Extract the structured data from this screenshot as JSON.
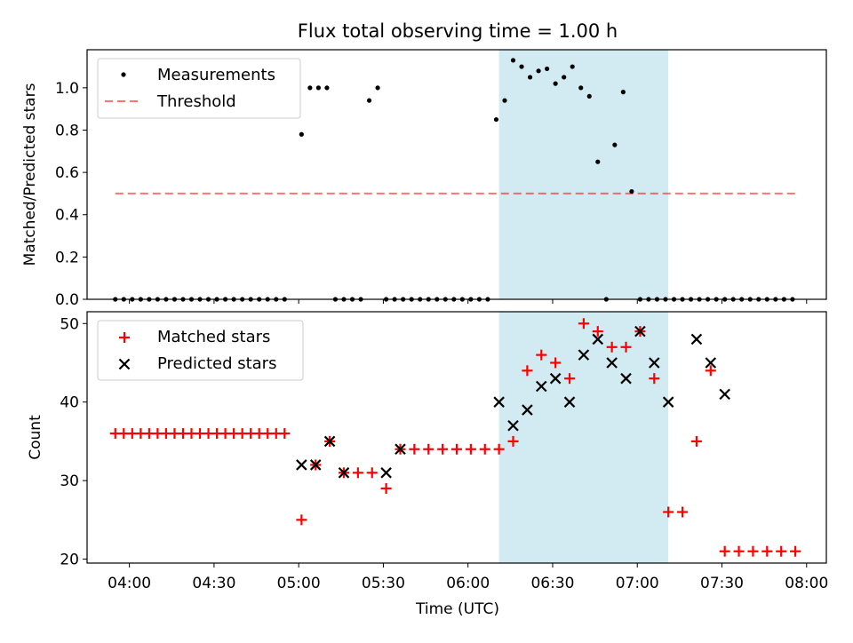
{
  "title": "Flux total observing time = 1.00 h",
  "xlabel": "Time (UTC)",
  "xticks": [
    "04:00",
    "04:30",
    "05:00",
    "05:30",
    "06:00",
    "06:30",
    "07:00",
    "07:30",
    "08:00"
  ],
  "colors": {
    "shade": "#add8e6",
    "measurements": "#000000",
    "threshold": "#ff0000",
    "matched": "#ff0000",
    "predicted": "#000000"
  },
  "chart_data": [
    {
      "type": "scatter",
      "panel": "top",
      "title": "Flux total observing time = 1.00 h",
      "xlabel": "",
      "ylabel": "Matched/Predicted stars",
      "xlim": [
        "03:45",
        "08:07"
      ],
      "ylim": [
        0,
        1.18
      ],
      "yticks": [
        "0.0",
        "0.2",
        "0.4",
        "0.6",
        "0.8",
        "1.0"
      ],
      "yticks_values": [
        0,
        0.2,
        0.4,
        0.6,
        0.8,
        1.0
      ],
      "legend_position": "upper-left",
      "legend": [
        "Measurements",
        "Threshold"
      ],
      "shaded_region": [
        "06:11",
        "07:11"
      ],
      "threshold": {
        "name": "Threshold",
        "value": 0.5,
        "x": [
          "03:55",
          "07:57"
        ]
      },
      "series": [
        {
          "name": "Measurements",
          "x": [
            "03:55",
            "03:58",
            "04:01",
            "04:04",
            "04:07",
            "04:10",
            "04:13",
            "04:16",
            "04:19",
            "04:22",
            "04:25",
            "04:28",
            "04:31",
            "04:34",
            "04:37",
            "04:40",
            "04:43",
            "04:46",
            "04:49",
            "04:52",
            "04:55",
            "05:01",
            "05:04",
            "05:07",
            "05:10",
            "05:13",
            "05:16",
            "05:19",
            "05:22",
            "05:25",
            "05:28",
            "05:31",
            "05:34",
            "05:37",
            "05:40",
            "05:43",
            "05:46",
            "05:49",
            "05:52",
            "05:55",
            "05:58",
            "06:01",
            "06:04",
            "06:07",
            "06:10",
            "06:13",
            "06:16",
            "06:19",
            "06:22",
            "06:25",
            "06:28",
            "06:31",
            "06:34",
            "06:37",
            "06:40",
            "06:43",
            "06:46",
            "06:49",
            "06:52",
            "06:55",
            "06:58",
            "07:01",
            "07:04",
            "07:07",
            "07:10",
            "07:13",
            "07:16",
            "07:19",
            "07:22",
            "07:25",
            "07:28",
            "07:31",
            "07:34",
            "07:37",
            "07:40",
            "07:43",
            "07:46",
            "07:49",
            "07:52",
            "07:55"
          ],
          "y": [
            0,
            0,
            0,
            0,
            0,
            0,
            0,
            0,
            0,
            0,
            0,
            0,
            0,
            0,
            0,
            0,
            0,
            0,
            0,
            0,
            0,
            0.78,
            1.0,
            1.0,
            1.0,
            0,
            0,
            0,
            0,
            0.94,
            1.0,
            0,
            0,
            0,
            0,
            0,
            0,
            0,
            0,
            0,
            0,
            0,
            0,
            0,
            0.85,
            0.94,
            1.13,
            1.1,
            1.05,
            1.08,
            1.09,
            1.02,
            1.05,
            1.1,
            1.0,
            0.96,
            0.65,
            0,
            0.73,
            0.98,
            0.51,
            0,
            0,
            0,
            0,
            0,
            0,
            0,
            0,
            0,
            0,
            0,
            0,
            0,
            0,
            0,
            0,
            0,
            0,
            0
          ]
        }
      ]
    },
    {
      "type": "scatter",
      "panel": "bottom",
      "xlabel": "Time (UTC)",
      "ylabel": "Count",
      "xlim": [
        "03:45",
        "08:07"
      ],
      "ylim": [
        19.5,
        51.5
      ],
      "yticks": [
        "20",
        "30",
        "40",
        "50"
      ],
      "yticks_values": [
        20,
        30,
        40,
        50
      ],
      "legend_position": "upper-left",
      "legend": [
        "Matched stars",
        "Predicted stars"
      ],
      "shaded_region": [
        "06:11",
        "07:11"
      ],
      "series": [
        {
          "name": "Matched stars",
          "marker": "+",
          "x": [
            "03:55",
            "03:58",
            "04:01",
            "04:04",
            "04:07",
            "04:10",
            "04:13",
            "04:16",
            "04:19",
            "04:22",
            "04:25",
            "04:28",
            "04:31",
            "04:34",
            "04:37",
            "04:40",
            "04:43",
            "04:46",
            "04:49",
            "04:52",
            "04:55",
            "05:01",
            "05:06",
            "05:11",
            "05:16",
            "05:21",
            "05:26",
            "05:31",
            "05:36",
            "05:41",
            "05:46",
            "05:51",
            "05:56",
            "06:01",
            "06:06",
            "06:11",
            "06:16",
            "06:21",
            "06:26",
            "06:31",
            "06:36",
            "06:41",
            "06:46",
            "06:51",
            "06:56",
            "07:01",
            "07:06",
            "07:11",
            "07:16",
            "07:21",
            "07:26",
            "07:31",
            "07:36",
            "07:41",
            "07:46",
            "07:51",
            "07:56"
          ],
          "y": [
            36,
            36,
            36,
            36,
            36,
            36,
            36,
            36,
            36,
            36,
            36,
            36,
            36,
            36,
            36,
            36,
            36,
            36,
            36,
            36,
            36,
            25,
            32,
            35,
            31,
            31,
            31,
            29,
            34,
            34,
            34,
            34,
            34,
            34,
            34,
            34,
            35,
            44,
            46,
            45,
            43,
            50,
            49,
            47,
            47,
            49,
            43,
            26,
            26,
            35,
            44,
            21,
            21,
            21,
            21,
            21,
            21
          ]
        },
        {
          "name": "Predicted stars",
          "marker": "x",
          "x": [
            "05:01",
            "05:06",
            "05:11",
            "05:16",
            "05:31",
            "05:36",
            "06:11",
            "06:16",
            "06:21",
            "06:26",
            "06:31",
            "06:36",
            "06:41",
            "06:46",
            "06:51",
            "06:56",
            "07:01",
            "07:06",
            "07:11",
            "07:21",
            "07:26",
            "07:31"
          ],
          "y": [
            32,
            32,
            35,
            31,
            31,
            34,
            40,
            37,
            39,
            42,
            43,
            40,
            46,
            48,
            45,
            43,
            49,
            45,
            40,
            48,
            45,
            41
          ]
        }
      ]
    }
  ]
}
